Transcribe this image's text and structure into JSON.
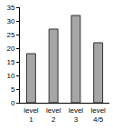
{
  "chart_data": {
    "type": "bar",
    "categories": [
      "level 1",
      "level 2",
      "level 3",
      "level 4/5"
    ],
    "values": [
      18,
      27,
      32,
      22
    ],
    "color": "#a6a6a6",
    "ylim": [
      0,
      35
    ],
    "yticks": [
      0,
      5,
      10,
      15,
      20,
      25,
      30,
      35
    ],
    "grid": false
  }
}
